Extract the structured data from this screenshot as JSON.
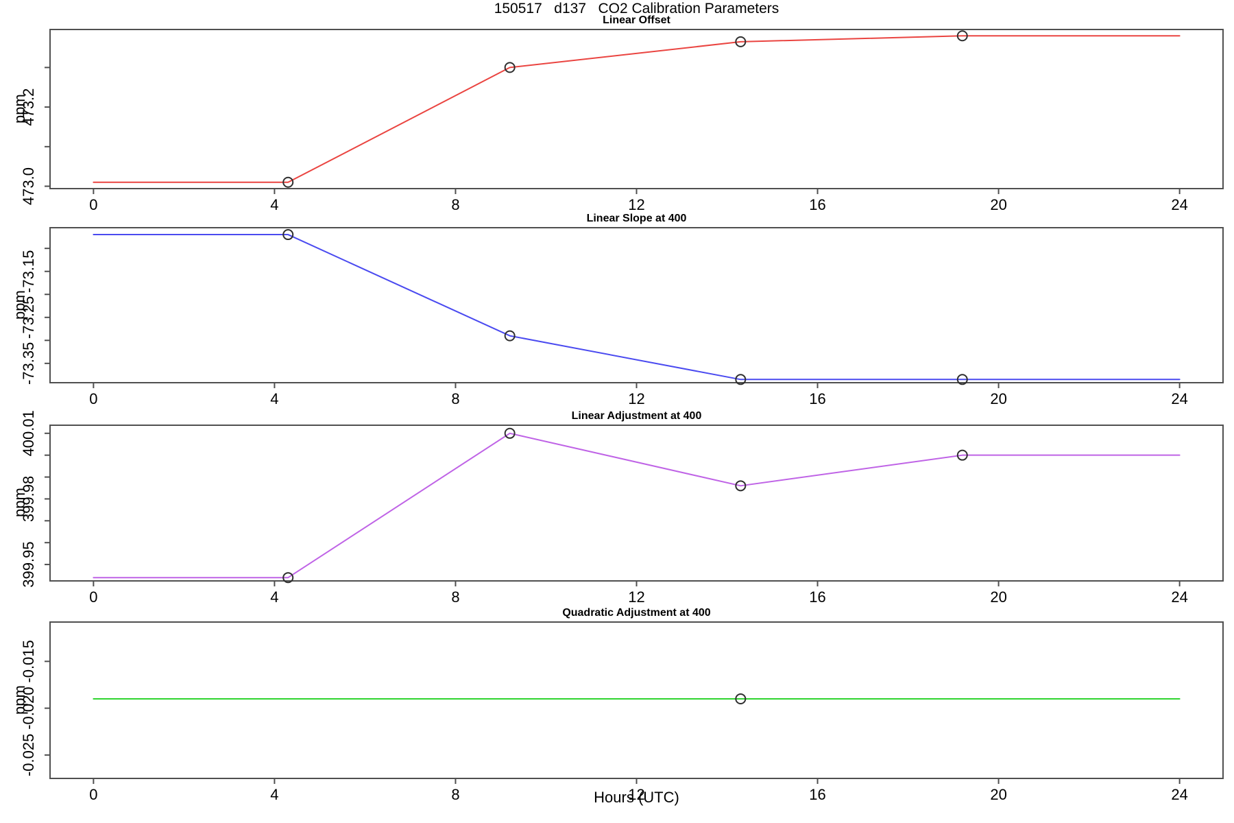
{
  "title": "150517   d137   CO2 Calibration Parameters",
  "x_axis": {
    "label": "Hours (UTC)",
    "ticks": [
      0,
      4,
      8,
      12,
      16,
      20,
      24
    ],
    "range": [
      -0.96,
      24.96
    ]
  },
  "frame_color": "#4f4f4f",
  "marker_color": "#2f2f2f",
  "chart_data": [
    {
      "type": "line",
      "title": "Linear Offset",
      "ylabel": "ppm",
      "color": "#ea4440",
      "x": [
        0,
        4.3,
        9.2,
        14.3,
        19.2,
        24
      ],
      "y": [
        473.01,
        473.01,
        473.3,
        473.365,
        473.38,
        473.38
      ],
      "markers": {
        "x": [
          4.3,
          9.2,
          14.3,
          19.2
        ],
        "y": [
          473.01,
          473.3,
          473.365,
          473.38
        ]
      },
      "yticks": [
        {
          "v": 473.0,
          "label": "473.0"
        },
        {
          "v": 473.1,
          "label": ""
        },
        {
          "v": 473.2,
          "label": "473.2"
        },
        {
          "v": 473.3,
          "label": ""
        }
      ],
      "ylim": [
        472.994,
        473.396
      ],
      "grid": false
    },
    {
      "type": "line",
      "title": "Linear Slope at 400",
      "ylabel": "ppm",
      "color": "#4a4af0",
      "x": [
        0,
        4.3,
        9.2,
        14.3,
        19.2,
        24
      ],
      "y": [
        -73.07,
        -73.07,
        -73.29,
        -73.385,
        -73.385,
        -73.385
      ],
      "markers": {
        "x": [
          4.3,
          9.2,
          14.3,
          19.2
        ],
        "y": [
          -73.07,
          -73.29,
          -73.385,
          -73.385
        ]
      },
      "yticks": [
        {
          "v": -73.35,
          "label": "-73.35"
        },
        {
          "v": -73.3,
          "label": ""
        },
        {
          "v": -73.25,
          "label": "-73.25"
        },
        {
          "v": -73.2,
          "label": ""
        },
        {
          "v": -73.15,
          "label": "-73.15"
        },
        {
          "v": -73.1,
          "label": ""
        }
      ],
      "ylim": [
        -73.392,
        -73.055
      ],
      "grid": false
    },
    {
      "type": "line",
      "title": "Linear Adjustment at 400",
      "ylabel": "ppm",
      "color": "#bf63e6",
      "x": [
        0,
        4.3,
        9.2,
        14.3,
        19.2,
        24
      ],
      "y": [
        399.944,
        399.944,
        400.01,
        399.986,
        400.0,
        400.0
      ],
      "markers": {
        "x": [
          4.3,
          9.2,
          14.3,
          19.2
        ],
        "y": [
          399.944,
          400.01,
          399.986,
          400.0
        ]
      },
      "yticks": [
        {
          "v": 399.95,
          "label": "399.95"
        },
        {
          "v": 399.96,
          "label": ""
        },
        {
          "v": 399.97,
          "label": ""
        },
        {
          "v": 399.98,
          "label": "399.98"
        },
        {
          "v": 399.99,
          "label": ""
        },
        {
          "v": 400.0,
          "label": ""
        },
        {
          "v": 400.01,
          "label": "400.01"
        }
      ],
      "ylim": [
        399.9425,
        400.0137
      ],
      "grid": false
    },
    {
      "type": "line",
      "title": "Quadratic Adjustment at 400",
      "ylabel": "ppm",
      "color": "#2fd42f",
      "x": [
        0,
        14.3,
        24
      ],
      "y": [
        -0.019,
        -0.019,
        -0.019
      ],
      "markers": {
        "x": [
          14.3
        ],
        "y": [
          -0.019
        ]
      },
      "yticks": [
        {
          "v": -0.015,
          "label": "-0.015"
        },
        {
          "v": -0.02,
          "label": "-0.020"
        },
        {
          "v": -0.025,
          "label": "-0.025"
        }
      ],
      "ylim": [
        -0.0275,
        -0.0108
      ],
      "grid": false
    }
  ]
}
